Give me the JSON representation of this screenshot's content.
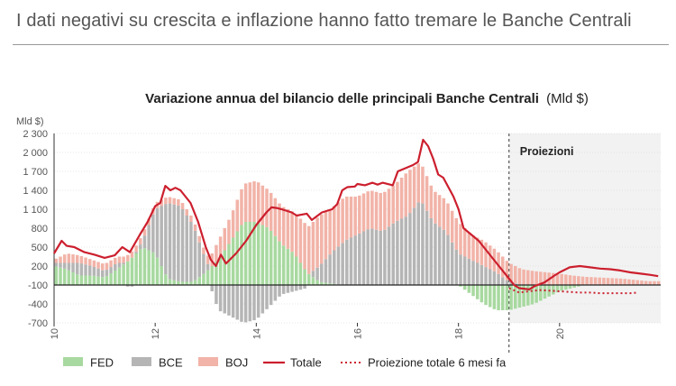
{
  "page": {
    "headline": "I dati negativi su crescita e inflazione hanno fatto tremare le Banche Centrali"
  },
  "chart_data": {
    "type": "bar",
    "title": "Variazione annua del bilancio delle principali Banche Centrali",
    "title_unit": "(Mld $)",
    "ylabel": "Mld $)",
    "ylim": [
      -700,
      2300
    ],
    "y_ticks": [
      "2 300",
      "2 000",
      "1 700",
      "1 400",
      "1 100",
      "800",
      "500",
      "200",
      "-100",
      "-400",
      "-700"
    ],
    "y_tick_values": [
      2300,
      2000,
      1700,
      1400,
      1100,
      800,
      500,
      200,
      -100,
      -400,
      -700
    ],
    "x_ticks": [
      "10",
      "12",
      "14",
      "16",
      "18",
      "20"
    ],
    "x_tick_values": [
      2010,
      2012,
      2014,
      2016,
      2018,
      2020
    ],
    "x_range": [
      2010.0,
      2022.0
    ],
    "baseline": -100,
    "projection_start": 2019.0,
    "projection_label": "Proiezioni",
    "legend": [
      {
        "key": "fed",
        "label": "FED",
        "color": "#a8d9a0"
      },
      {
        "key": "bce",
        "label": "BCE",
        "color": "#b5b5b5"
      },
      {
        "key": "boj",
        "label": "BOJ",
        "color": "#f2b3a8"
      },
      {
        "key": "total",
        "label": "Totale",
        "color": "#cc1f2e"
      },
      {
        "key": "proj6",
        "label": "Proiezione totale 6 mesi fa",
        "color": "#cc1f2e"
      }
    ],
    "total_series": {
      "name": "Totale",
      "points": [
        [
          2010.0,
          400
        ],
        [
          2010.15,
          600
        ],
        [
          2010.25,
          520
        ],
        [
          2010.4,
          500
        ],
        [
          2010.6,
          420
        ],
        [
          2010.8,
          380
        ],
        [
          2011.0,
          330
        ],
        [
          2011.2,
          370
        ],
        [
          2011.35,
          500
        ],
        [
          2011.5,
          420
        ],
        [
          2011.7,
          700
        ],
        [
          2011.85,
          900
        ],
        [
          2012.0,
          1150
        ],
        [
          2012.1,
          1200
        ],
        [
          2012.2,
          1470
        ],
        [
          2012.3,
          1400
        ],
        [
          2012.4,
          1440
        ],
        [
          2012.5,
          1400
        ],
        [
          2012.6,
          1300
        ],
        [
          2012.7,
          1200
        ],
        [
          2012.85,
          900
        ],
        [
          2013.0,
          500
        ],
        [
          2013.1,
          300
        ],
        [
          2013.2,
          200
        ],
        [
          2013.3,
          380
        ],
        [
          2013.4,
          240
        ],
        [
          2013.6,
          400
        ],
        [
          2013.8,
          600
        ],
        [
          2014.0,
          850
        ],
        [
          2014.2,
          1050
        ],
        [
          2014.3,
          1130
        ],
        [
          2014.4,
          1120
        ],
        [
          2014.5,
          1100
        ],
        [
          2014.7,
          1050
        ],
        [
          2014.8,
          1000
        ],
        [
          2015.0,
          1030
        ],
        [
          2015.1,
          930
        ],
        [
          2015.3,
          1050
        ],
        [
          2015.5,
          1100
        ],
        [
          2015.6,
          1180
        ],
        [
          2015.7,
          1400
        ],
        [
          2015.8,
          1450
        ],
        [
          2015.95,
          1460
        ],
        [
          2016.0,
          1500
        ],
        [
          2016.15,
          1480
        ],
        [
          2016.3,
          1520
        ],
        [
          2016.4,
          1490
        ],
        [
          2016.5,
          1520
        ],
        [
          2016.7,
          1480
        ],
        [
          2016.8,
          1700
        ],
        [
          2016.95,
          1750
        ],
        [
          2017.1,
          1800
        ],
        [
          2017.2,
          1850
        ],
        [
          2017.3,
          2200
        ],
        [
          2017.4,
          2100
        ],
        [
          2017.5,
          1900
        ],
        [
          2017.6,
          1650
        ],
        [
          2017.7,
          1600
        ],
        [
          2017.9,
          1300
        ],
        [
          2018.0,
          1100
        ],
        [
          2018.1,
          800
        ],
        [
          2018.25,
          700
        ],
        [
          2018.4,
          600
        ],
        [
          2018.6,
          400
        ],
        [
          2018.8,
          200
        ],
        [
          2019.0,
          0
        ],
        [
          2019.1,
          -100
        ],
        [
          2019.2,
          -150
        ],
        [
          2019.4,
          -170
        ],
        [
          2019.5,
          -120
        ],
        [
          2019.7,
          -60
        ],
        [
          2019.9,
          50
        ],
        [
          2020.0,
          100
        ],
        [
          2020.2,
          180
        ],
        [
          2020.4,
          200
        ],
        [
          2020.6,
          180
        ],
        [
          2020.8,
          160
        ],
        [
          2021.0,
          150
        ],
        [
          2021.2,
          130
        ],
        [
          2021.4,
          100
        ],
        [
          2021.6,
          80
        ],
        [
          2021.8,
          60
        ],
        [
          2021.95,
          40
        ]
      ]
    },
    "projection_6m_ago": {
      "name": "Proiezione totale 6 mesi fa",
      "points": [
        [
          2019.0,
          -150
        ],
        [
          2019.2,
          -220
        ],
        [
          2019.4,
          -200
        ],
        [
          2019.6,
          -180
        ],
        [
          2019.8,
          -190
        ],
        [
          2020.0,
          -200
        ],
        [
          2020.2,
          -210
        ],
        [
          2020.4,
          -220
        ],
        [
          2020.6,
          -220
        ],
        [
          2020.8,
          -230
        ],
        [
          2021.0,
          -230
        ],
        [
          2021.2,
          -230
        ],
        [
          2021.4,
          -230
        ],
        [
          2021.55,
          -220
        ]
      ]
    },
    "bar_series": {
      "note": "Stacked monthly components in Mld $ (values read as approximate by period)",
      "periods": [
        {
          "x": 2010.0,
          "fed": 300,
          "bce": 50,
          "boj": 50
        },
        {
          "x": 2010.25,
          "fed": 250,
          "bce": 100,
          "boj": 150
        },
        {
          "x": 2010.5,
          "fed": 150,
          "bce": 200,
          "boj": 120
        },
        {
          "x": 2010.75,
          "fed": 150,
          "bce": 150,
          "boj": 100
        },
        {
          "x": 2011.0,
          "fed": 120,
          "bce": 100,
          "boj": 110
        },
        {
          "x": 2011.25,
          "fed": 250,
          "bce": 100,
          "boj": 100
        },
        {
          "x": 2011.5,
          "fed": 400,
          "bce": -50,
          "boj": 100
        },
        {
          "x": 2011.75,
          "fed": 600,
          "bce": 100,
          "boj": 100
        },
        {
          "x": 2012.0,
          "fed": 500,
          "bce": 700,
          "boj": 100
        },
        {
          "x": 2012.25,
          "fed": 100,
          "bce": 1200,
          "boj": 100
        },
        {
          "x": 2012.5,
          "fed": 50,
          "bce": 1200,
          "boj": 100
        },
        {
          "x": 2012.75,
          "fed": 50,
          "bce": 900,
          "boj": 100
        },
        {
          "x": 2013.0,
          "fed": 200,
          "bce": 200,
          "boj": 100
        },
        {
          "x": 2013.25,
          "fed": 400,
          "bce": -400,
          "boj": 300
        },
        {
          "x": 2013.5,
          "fed": 700,
          "bce": -500,
          "boj": 400
        },
        {
          "x": 2013.75,
          "fed": 1000,
          "bce": -600,
          "boj": 600
        },
        {
          "x": 2014.0,
          "fed": 1000,
          "bce": -550,
          "boj": 650
        },
        {
          "x": 2014.25,
          "fed": 900,
          "bce": -350,
          "boj": 600
        },
        {
          "x": 2014.5,
          "fed": 650,
          "bce": -150,
          "boj": 600
        },
        {
          "x": 2014.75,
          "fed": 500,
          "bce": -100,
          "boj": 650
        },
        {
          "x": 2015.0,
          "fed": 200,
          "bce": -50,
          "boj": 750
        },
        {
          "x": 2015.25,
          "fed": 50,
          "bce": 250,
          "boj": 800
        },
        {
          "x": 2015.5,
          "fed": 20,
          "bce": 500,
          "boj": 700
        },
        {
          "x": 2015.75,
          "fed": 0,
          "bce": 700,
          "boj": 700
        },
        {
          "x": 2016.0,
          "fed": 0,
          "bce": 800,
          "boj": 600
        },
        {
          "x": 2016.25,
          "fed": 0,
          "bce": 900,
          "boj": 600
        },
        {
          "x": 2016.5,
          "fed": 0,
          "bce": 850,
          "boj": 600
        },
        {
          "x": 2016.75,
          "fed": 0,
          "bce": 1000,
          "boj": 600
        },
        {
          "x": 2017.0,
          "fed": 0,
          "bce": 1100,
          "boj": 700
        },
        {
          "x": 2017.25,
          "fed": 0,
          "bce": 1350,
          "boj": 600
        },
        {
          "x": 2017.5,
          "fed": 0,
          "bce": 1000,
          "boj": 500
        },
        {
          "x": 2017.75,
          "fed": 0,
          "bce": 850,
          "boj": 500
        },
        {
          "x": 2018.0,
          "fed": 0,
          "bce": 500,
          "boj": 500
        },
        {
          "x": 2018.25,
          "fed": -150,
          "bce": 400,
          "boj": 400
        },
        {
          "x": 2018.5,
          "fed": -300,
          "bce": 300,
          "boj": 400
        },
        {
          "x": 2018.75,
          "fed": -400,
          "bce": 200,
          "boj": 350
        },
        {
          "x": 2019.0,
          "fed": -400,
          "bce": 50,
          "boj": 300
        },
        {
          "x": 2019.25,
          "fed": -350,
          "bce": 0,
          "boj": 250
        },
        {
          "x": 2019.5,
          "fed": -300,
          "bce": 0,
          "boj": 220
        },
        {
          "x": 2019.75,
          "fed": -200,
          "bce": 0,
          "boj": 200
        },
        {
          "x": 2020.0,
          "fed": -100,
          "bce": 0,
          "boj": 180
        },
        {
          "x": 2020.25,
          "fed": -50,
          "bce": 0,
          "boj": 150
        },
        {
          "x": 2020.5,
          "fed": 0,
          "bce": 0,
          "boj": 130
        },
        {
          "x": 2020.75,
          "fed": 0,
          "bce": 0,
          "boj": 120
        },
        {
          "x": 2021.0,
          "fed": 0,
          "bce": 0,
          "boj": 110
        },
        {
          "x": 2021.25,
          "fed": 0,
          "bce": 0,
          "boj": 100
        },
        {
          "x": 2021.5,
          "fed": 0,
          "bce": 0,
          "boj": 80
        },
        {
          "x": 2021.75,
          "fed": 0,
          "bce": 0,
          "boj": 60
        }
      ]
    }
  }
}
